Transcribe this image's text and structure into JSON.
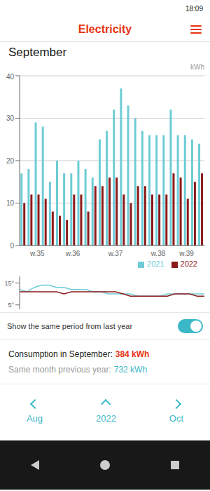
{
  "chart_data": [
    {
      "type": "bar",
      "title": "September",
      "ylabel": "kWh",
      "categories": [
        null,
        null,
        "w.35",
        null,
        null,
        null,
        null,
        "w.36",
        null,
        null,
        null,
        null,
        null,
        "w.37",
        null,
        null,
        null,
        null,
        null,
        "w.38",
        null,
        null,
        null,
        "w.39",
        null,
        null
      ],
      "series": [
        {
          "name": "2021",
          "color": "#6dccd6",
          "values": [
            17,
            18,
            29,
            28,
            15,
            20,
            17,
            17,
            20,
            18,
            16,
            25,
            27,
            32,
            37,
            33,
            30,
            27,
            26,
            26,
            26,
            32,
            26,
            26,
            25,
            24
          ]
        },
        {
          "name": "2022",
          "color": "#8b1a1a",
          "values": [
            10,
            12,
            12,
            11,
            8,
            7,
            6,
            12,
            12,
            8,
            14,
            14,
            16,
            16,
            12,
            10,
            14,
            14,
            12,
            12,
            12,
            17,
            16,
            11,
            15,
            17
          ]
        }
      ],
      "ylim": [
        0,
        40
      ],
      "yticks": [
        0,
        10,
        20,
        30,
        40
      ],
      "grid": true,
      "legend": "right",
      "annotations": [
        "18:09",
        "Electricity",
        "Show the same period from last year",
        "Consumption in September:",
        "384 kWh",
        "Same month previous year:",
        "732 kWh",
        "Aug",
        "2022",
        "Oct"
      ]
    },
    {
      "type": "line",
      "categories": [
        null,
        null,
        null,
        null,
        null,
        null,
        null,
        null,
        null,
        null,
        null,
        null,
        null,
        null,
        null,
        null,
        null,
        null,
        null,
        null,
        null,
        null,
        null,
        null,
        null,
        null
      ],
      "series": [
        {
          "color": "#6dccd6",
          "values": [
            12,
            11,
            13,
            14,
            14,
            13,
            13,
            12,
            12,
            12,
            11,
            11,
            10,
            10,
            10,
            10,
            9,
            9,
            9,
            9,
            10,
            10,
            10,
            10,
            10,
            10
          ]
        },
        {
          "color": "#8b1a1a",
          "values": [
            11,
            11,
            11,
            11,
            11,
            11,
            10,
            11,
            11,
            11,
            11,
            11,
            11,
            11,
            10,
            9,
            9,
            9,
            9,
            9,
            9,
            10,
            10,
            10,
            9,
            9
          ]
        }
      ],
      "ylim": [
        3,
        18
      ],
      "yticks": [
        {
          "value": 5,
          "label": "5°"
        },
        {
          "value": 15,
          "label": "15°"
        }
      ],
      "grid": false,
      "tick_labels": "y"
    }
  ]
}
